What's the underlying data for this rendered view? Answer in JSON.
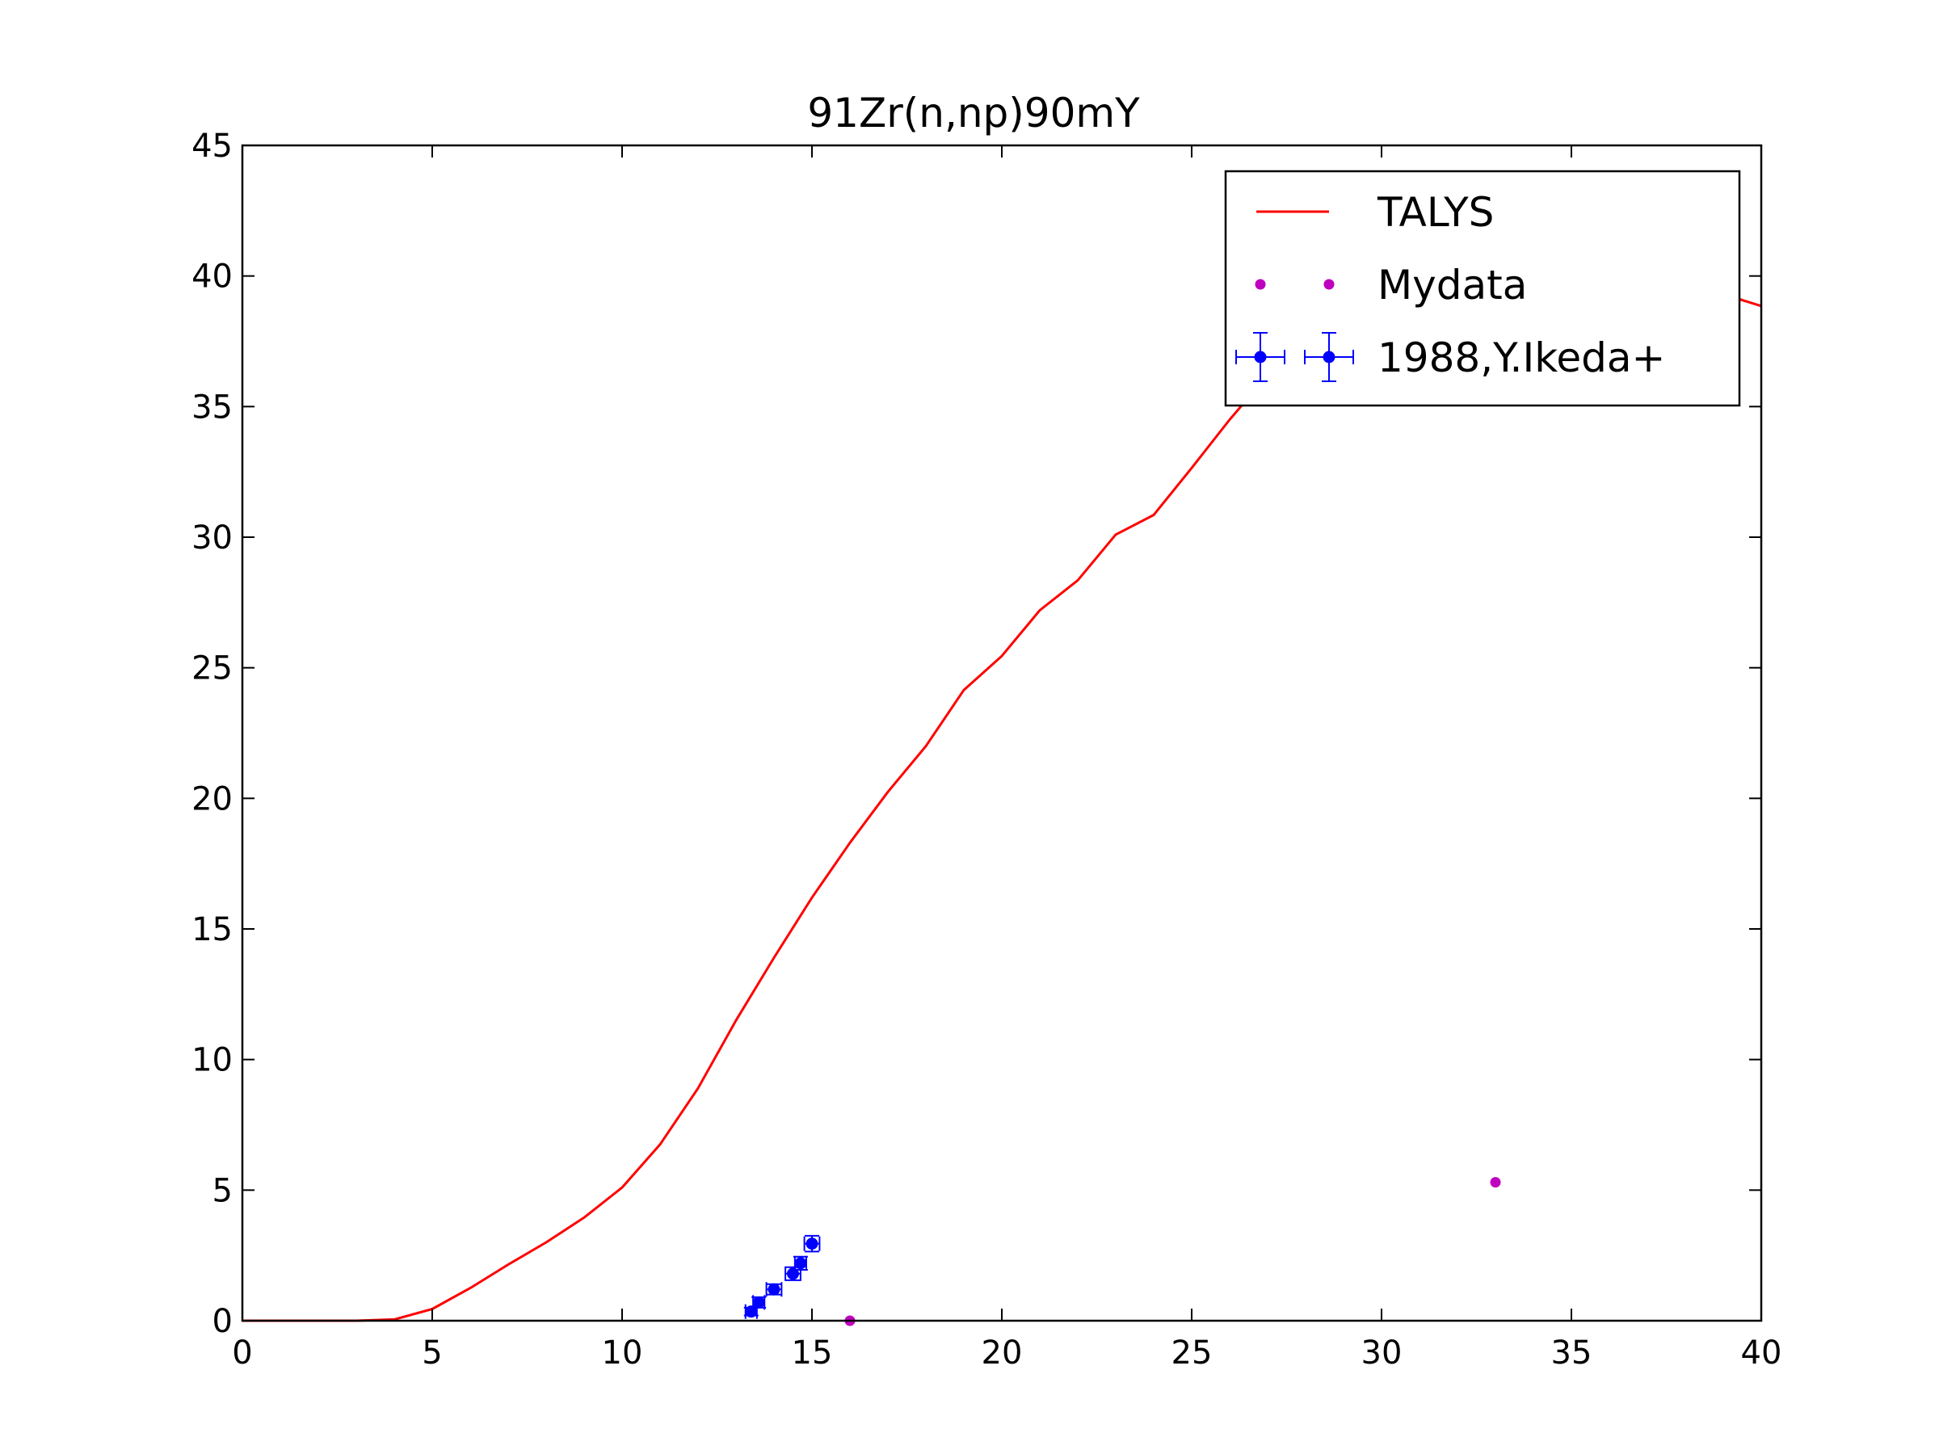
{
  "chart_data": {
    "type": "line",
    "title": "91Zr(n,np)90mY",
    "xlabel": "",
    "ylabel": "",
    "xlim": [
      0,
      40
    ],
    "ylim": [
      0,
      45
    ],
    "xticks": [
      0,
      5,
      10,
      15,
      20,
      25,
      30,
      35,
      40
    ],
    "yticks": [
      0,
      5,
      10,
      15,
      20,
      25,
      30,
      35,
      40,
      45
    ],
    "grid": false,
    "legend_position": "top-right",
    "series": [
      {
        "name": "TALYS",
        "kind": "line",
        "color": "#ff0000",
        "x": [
          0,
          3,
          4,
          5,
          6,
          7,
          8,
          9,
          10,
          11,
          12,
          13,
          14,
          15,
          16,
          17,
          18,
          19,
          20,
          21,
          22,
          23,
          24,
          25,
          26,
          27,
          28,
          29,
          30,
          31,
          32,
          33,
          34,
          35,
          36,
          37,
          38,
          39,
          40
        ],
        "y": [
          0,
          0,
          0.05,
          0.45,
          1.25,
          2.15,
          3.0,
          3.95,
          5.1,
          6.75,
          8.9,
          11.5,
          13.9,
          16.2,
          18.3,
          20.25,
          22.0,
          24.15,
          25.45,
          27.2,
          28.35,
          30.1,
          30.85,
          32.65,
          34.5,
          36.2,
          37.4,
          38.35,
          38.95,
          39.4,
          39.7,
          39.85,
          39.9,
          39.85,
          39.8,
          39.7,
          39.6,
          39.3,
          38.85
        ]
      },
      {
        "name": "Mydata",
        "kind": "scatter",
        "color": "#bf00bf",
        "x": [
          16,
          33
        ],
        "y": [
          0,
          5.3
        ]
      },
      {
        "name": "1988,Y.Ikeda+",
        "kind": "errorbar",
        "color": "#0000ff",
        "x": [
          13.4,
          13.6,
          14.0,
          14.5,
          14.7,
          15.0
        ],
        "y": [
          0.35,
          0.7,
          1.2,
          1.8,
          2.2,
          2.95
        ],
        "xerr": [
          0.15,
          0.15,
          0.2,
          0.2,
          0.15,
          0.2
        ],
        "yerr": [
          0.15,
          0.2,
          0.2,
          0.25,
          0.25,
          0.3
        ]
      }
    ]
  }
}
